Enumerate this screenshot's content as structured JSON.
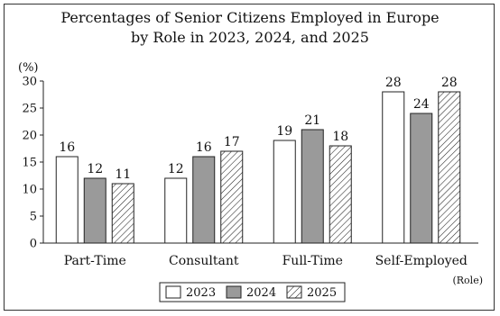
{
  "chart_data": {
    "type": "bar",
    "title_line1": "Percentages of Senior Citizens Employed in Europe",
    "title_line2": "by Role in 2023, 2024, and 2025",
    "ylabel": "(%)",
    "xlabel": "(Role)",
    "ylim": [
      0,
      30
    ],
    "yticks": [
      0,
      5,
      10,
      15,
      20,
      25,
      30
    ],
    "categories": [
      "Part-Time",
      "Consultant",
      "Full-Time",
      "Self-Employed"
    ],
    "series": [
      {
        "name": "2023",
        "values": [
          16,
          12,
          19,
          28
        ],
        "fill": "#ffffff",
        "pattern": "none"
      },
      {
        "name": "2024",
        "values": [
          12,
          16,
          21,
          24
        ],
        "fill": "#9a9a9a",
        "pattern": "none"
      },
      {
        "name": "2025",
        "values": [
          11,
          17,
          18,
          28
        ],
        "fill": "#ffffff",
        "pattern": "hatch"
      }
    ],
    "grid": false,
    "legend_position": "bottom-center"
  }
}
